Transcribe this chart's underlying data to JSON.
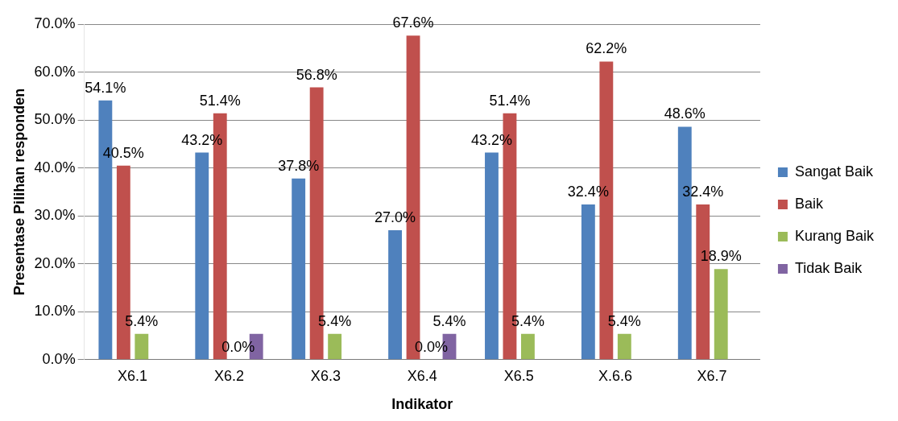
{
  "chart_data": {
    "type": "bar",
    "xlabel": "Indikator",
    "ylabel": "Presentase Pilihan responden",
    "categories": [
      "X6.1",
      "X6.2",
      "X6.3",
      "X6.4",
      "X6.5",
      "X.6.6",
      "X6.7"
    ],
    "series": [
      {
        "name": "Sangat Baik",
        "color": "#4f81bd",
        "values": [
          54.1,
          43.2,
          37.8,
          27.0,
          43.2,
          32.4,
          48.6
        ],
        "value_labels": [
          "54.1%",
          "43.2%",
          "37.8%",
          "27.0%",
          "43.2%",
          "32.4%",
          "48.6%"
        ]
      },
      {
        "name": "Baik",
        "color": "#c0504d",
        "values": [
          40.5,
          51.4,
          56.8,
          67.6,
          51.4,
          62.2,
          32.4
        ],
        "value_labels": [
          "40.5%",
          "51.4%",
          "56.8%",
          "67.6%",
          "51.4%",
          "62.2%",
          "32.4%"
        ]
      },
      {
        "name": "Kurang Baik",
        "color": "#9bbb59",
        "values": [
          5.4,
          0.0,
          5.4,
          0.0,
          5.4,
          5.4,
          18.9
        ],
        "value_labels": [
          "5.4%",
          "0.0%",
          "5.4%",
          "0.0%",
          "5.4%",
          "5.4%",
          "18.9%"
        ]
      },
      {
        "name": "Tidak Baik",
        "color": "#8064a2",
        "values": [
          0.0,
          5.4,
          0.0,
          5.4,
          0.0,
          0.0,
          0.0
        ],
        "value_labels": [
          null,
          null,
          null,
          "5.4%",
          null,
          null,
          null
        ]
      }
    ],
    "ylim": [
      0,
      70
    ],
    "yticks": [
      {
        "value": 0,
        "label": "0.0%"
      },
      {
        "value": 10,
        "label": "10.0%"
      },
      {
        "value": 20,
        "label": "20.0%"
      },
      {
        "value": 30,
        "label": "30.0%"
      },
      {
        "value": 40,
        "label": "40.0%"
      },
      {
        "value": 50,
        "label": "50.0%"
      },
      {
        "value": 60,
        "label": "60.0%"
      },
      {
        "value": 70,
        "label": "70.0%"
      }
    ],
    "grid": "y",
    "legend": "right"
  }
}
